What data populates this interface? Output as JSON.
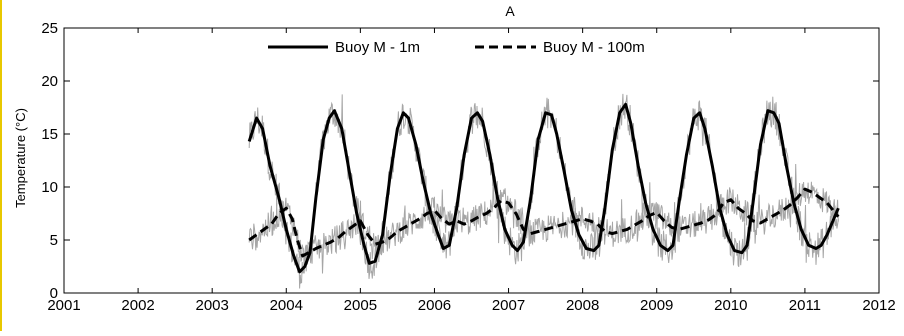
{
  "chart_data": {
    "type": "line",
    "title": "A",
    "xlabel": "",
    "ylabel": "Temperature (°C)",
    "xlim": [
      2001,
      2012
    ],
    "ylim": [
      0,
      25
    ],
    "xticks": [
      2001,
      2002,
      2003,
      2004,
      2005,
      2006,
      2007,
      2008,
      2009,
      2010,
      2011,
      2012
    ],
    "yticks": [
      0,
      5,
      10,
      15,
      20,
      25
    ],
    "xtick_labels": [
      "2001",
      "2002",
      "2003",
      "2004",
      "2005",
      "2006",
      "2007",
      "2008",
      "2009",
      "2010",
      "2011",
      "2012"
    ],
    "ytick_labels": [
      "0",
      "5",
      "10",
      "15",
      "20",
      "25"
    ],
    "grid": false,
    "legend_position": "top-center",
    "raw_color": "#a6a6a6",
    "smooth_color": "#000000",
    "series": [
      {
        "name": "Buoy M - 1m",
        "style": "solid",
        "x": [
          2003.5,
          2003.6,
          2003.68,
          2003.78,
          2003.9,
          2004.0,
          2004.1,
          2004.18,
          2004.25,
          2004.32,
          2004.4,
          2004.5,
          2004.58,
          2004.65,
          2004.75,
          2004.85,
          2004.95,
          2005.05,
          2005.12,
          2005.2,
          2005.3,
          2005.4,
          2005.5,
          2005.58,
          2005.65,
          2005.75,
          2005.85,
          2005.95,
          2006.05,
          2006.12,
          2006.2,
          2006.3,
          2006.4,
          2006.5,
          2006.58,
          2006.65,
          2006.75,
          2006.85,
          2006.95,
          2007.05,
          2007.12,
          2007.2,
          2007.3,
          2007.4,
          2007.5,
          2007.58,
          2007.65,
          2007.75,
          2007.85,
          2007.95,
          2008.05,
          2008.15,
          2008.22,
          2008.3,
          2008.4,
          2008.5,
          2008.58,
          2008.65,
          2008.75,
          2008.85,
          2008.95,
          2009.05,
          2009.15,
          2009.22,
          2009.3,
          2009.4,
          2009.5,
          2009.58,
          2009.65,
          2009.75,
          2009.85,
          2009.95,
          2010.05,
          2010.15,
          2010.22,
          2010.3,
          2010.4,
          2010.5,
          2010.58,
          2010.65,
          2010.75,
          2010.85,
          2010.95,
          2011.05,
          2011.15,
          2011.22,
          2011.3,
          2011.45
        ],
        "values": [
          14.3,
          16.5,
          15.5,
          12.0,
          9.0,
          6.0,
          3.5,
          2.0,
          2.5,
          3.8,
          9.0,
          14.5,
          16.5,
          17.2,
          15.5,
          11.5,
          7.5,
          4.5,
          2.8,
          3.0,
          5.5,
          11.0,
          15.5,
          17.0,
          16.5,
          14.0,
          10.5,
          7.5,
          5.5,
          4.2,
          4.5,
          8.0,
          13.0,
          16.5,
          17.0,
          16.2,
          13.0,
          9.0,
          6.0,
          4.5,
          4.0,
          4.8,
          9.0,
          14.5,
          17.0,
          16.8,
          15.0,
          11.5,
          7.8,
          5.5,
          4.2,
          4.0,
          4.5,
          8.0,
          13.5,
          17.0,
          17.8,
          16.0,
          12.0,
          8.5,
          6.0,
          4.5,
          4.0,
          4.5,
          8.5,
          13.0,
          16.5,
          17.0,
          15.5,
          12.0,
          8.0,
          5.5,
          4.0,
          3.8,
          4.5,
          8.5,
          14.0,
          17.2,
          17.0,
          16.0,
          12.0,
          8.5,
          6.0,
          4.5,
          4.2,
          4.5,
          5.5,
          8.0
        ]
      },
      {
        "name": "Buoy M - 100m",
        "style": "dashed",
        "x": [
          2003.5,
          2003.6,
          2003.7,
          2003.8,
          2003.9,
          2004.0,
          2004.08,
          2004.15,
          2004.22,
          2004.3,
          2004.4,
          2004.5,
          2004.6,
          2004.7,
          2004.8,
          2004.9,
          2005.0,
          2005.1,
          2005.2,
          2005.3,
          2005.4,
          2005.5,
          2005.6,
          2005.7,
          2005.8,
          2005.9,
          2006.0,
          2006.1,
          2006.2,
          2006.3,
          2006.4,
          2006.5,
          2006.6,
          2006.7,
          2006.8,
          2006.9,
          2007.0,
          2007.1,
          2007.2,
          2007.3,
          2007.4,
          2007.5,
          2007.6,
          2007.7,
          2007.8,
          2007.9,
          2008.0,
          2008.1,
          2008.2,
          2008.3,
          2008.4,
          2008.5,
          2008.6,
          2008.7,
          2008.8,
          2008.9,
          2009.0,
          2009.1,
          2009.2,
          2009.3,
          2009.4,
          2009.5,
          2009.6,
          2009.7,
          2009.8,
          2009.9,
          2010.0,
          2010.1,
          2010.2,
          2010.3,
          2010.4,
          2010.5,
          2010.6,
          2010.7,
          2010.8,
          2010.9,
          2011.0,
          2011.1,
          2011.2,
          2011.3,
          2011.45
        ],
        "values": [
          5.0,
          5.5,
          6.0,
          6.5,
          7.5,
          8.0,
          7.0,
          5.0,
          3.5,
          3.8,
          4.2,
          4.5,
          4.8,
          5.2,
          5.8,
          6.3,
          6.8,
          5.5,
          4.6,
          4.8,
          5.2,
          5.8,
          6.2,
          6.6,
          7.0,
          7.5,
          7.8,
          7.0,
          6.5,
          6.8,
          6.5,
          6.8,
          7.2,
          7.5,
          8.0,
          8.7,
          8.5,
          7.5,
          6.0,
          5.6,
          5.8,
          6.0,
          6.2,
          6.4,
          6.6,
          6.8,
          7.0,
          6.8,
          6.5,
          5.8,
          5.6,
          5.8,
          6.0,
          6.4,
          6.8,
          7.3,
          7.6,
          6.8,
          6.2,
          6.0,
          6.2,
          6.4,
          6.6,
          6.9,
          7.4,
          8.5,
          8.8,
          8.0,
          7.5,
          6.8,
          6.6,
          7.0,
          7.4,
          7.8,
          8.3,
          9.0,
          9.8,
          9.5,
          9.0,
          8.5,
          7.2
        ]
      }
    ]
  }
}
